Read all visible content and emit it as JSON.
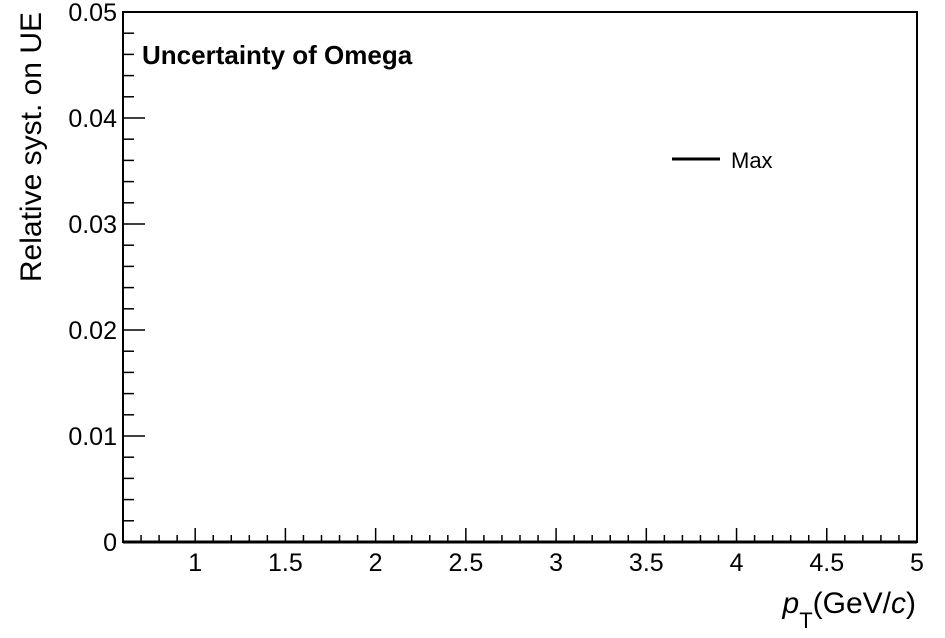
{
  "chart_data": {
    "type": "line",
    "title": "Uncertainty of Omega",
    "xlabel_main": "p",
    "xlabel_sub": "T",
    "xlabel_unit_open": "(GeV/",
    "xlabel_unit_italic": "c",
    "xlabel_unit_close": ")",
    "ylabel": "Relative syst. on UE",
    "xlim": [
      0.6,
      5.0
    ],
    "ylim": [
      0,
      0.05
    ],
    "xticks": [
      1,
      1.5,
      2,
      2.5,
      3,
      3.5,
      4,
      4.5,
      5
    ],
    "xtick_labels": [
      "1",
      "1.5",
      "2",
      "2.5",
      "3",
      "3.5",
      "4",
      "4.5",
      "5"
    ],
    "yticks": [
      0,
      0.01,
      0.02,
      0.03,
      0.04,
      0.05
    ],
    "ytick_labels": [
      "0",
      "0.01",
      "0.02",
      "0.03",
      "0.04",
      "0.05"
    ],
    "grid": false,
    "legend_placement": "top-right",
    "series": [
      {
        "name": "Max",
        "color": "#000000",
        "x": [
          0.6,
          5.0
        ],
        "y": [
          0,
          0
        ]
      }
    ]
  }
}
